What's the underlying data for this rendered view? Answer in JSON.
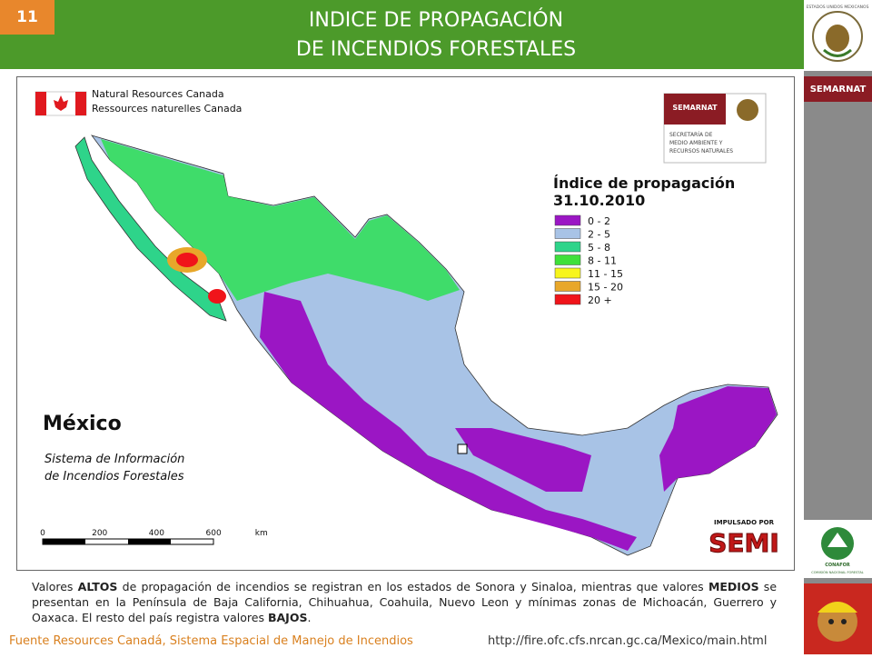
{
  "header": {
    "slide_number": "11",
    "title_lines": [
      "INDICE DE PROPAGACIÓN",
      "DE INCENDIOS FORESTALES"
    ]
  },
  "sidebar": {
    "emblem_text": "ESTADOS UNIDOS MEXICANOS",
    "label": "SEMARNAT",
    "conafor_brand": "CONAFOR",
    "conafor_text": "COMISIÓN NACIONAL FORESTAL"
  },
  "map": {
    "agency_lines": [
      "Natural Resources Canada",
      "Ressources naturelles Canada"
    ],
    "semarnat_logo": {
      "name": "SEMARNAT",
      "lines": [
        "SECRETARÍA DE",
        "MEDIO AMBIENTE Y",
        "RECURSOS NATURALES"
      ]
    },
    "legend": {
      "title": "Índice de propagación",
      "date": "31.10.2010",
      "items": [
        {
          "label": "0 - 2",
          "color": "#9b16c4"
        },
        {
          "label": "2 - 5",
          "color": "#a8c3e6"
        },
        {
          "label": "5 - 8",
          "color": "#2ed48a"
        },
        {
          "label": "8 - 11",
          "color": "#3fe03a"
        },
        {
          "label": "11 - 15",
          "color": "#f7f51c"
        },
        {
          "label": "15 - 20",
          "color": "#e8a72a"
        },
        {
          "label": "20 +",
          "color": "#f0141a"
        }
      ]
    },
    "country": "México",
    "system_lines": [
      "Sistema de Información",
      "de Incendios Forestales"
    ],
    "scale_labels": [
      "0",
      "200",
      "400",
      "600",
      "km"
    ],
    "sponsor": {
      "caption": "IMPULSADO POR",
      "name": "SEMI"
    }
  },
  "description": [
    {
      "text": "Valores ",
      "bold": false
    },
    {
      "text": "ALTOS",
      "bold": true
    },
    {
      "text": " de propagación de incendios se registran en los estados de  Sonora y Sinaloa, mientras que valores ",
      "bold": false
    },
    {
      "text": "MEDIOS",
      "bold": true
    },
    {
      "text": "  se presentan en la Península de Baja California, Chihuahua, Coahuila, Nuevo Leon y mínimas zonas de  Michoacán, Guerrero y Oaxaca.  El resto del país  registra  valores ",
      "bold": false
    },
    {
      "text": "BAJOS",
      "bold": true
    },
    {
      "text": ".",
      "bold": false
    }
  ],
  "footer": {
    "source": "Fuente Resources Canadá, Sistema Espacial de Manejo de Incendios",
    "url": "http://fire.ofc.cfs.nrcan.gc.ca/Mexico/main.html"
  }
}
